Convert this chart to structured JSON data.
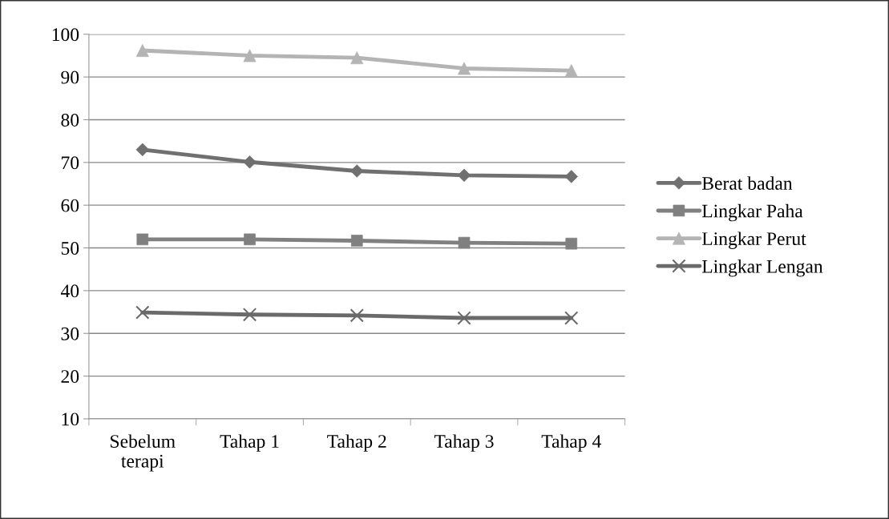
{
  "chart_data": {
    "type": "line",
    "categories": [
      "Sebelum\nterapi",
      "Tahap 1",
      "Tahap 2",
      "Tahap 3",
      "Tahap 4"
    ],
    "series": [
      {
        "name": "Berat badan",
        "color": "#707070",
        "marker": "diamond",
        "values": [
          73,
          70.1,
          68,
          67,
          66.7
        ]
      },
      {
        "name": "Lingkar Paha",
        "color": "#808080",
        "marker": "square",
        "values": [
          52,
          52,
          51.7,
          51.2,
          51
        ]
      },
      {
        "name": "Lingkar Perut",
        "color": "#b4b4b4",
        "marker": "triangle",
        "values": [
          96.2,
          95,
          94.5,
          92,
          91.5
        ]
      },
      {
        "name": "Lingkar Lengan",
        "color": "#6a6a6a",
        "marker": "cross",
        "values": [
          34.9,
          34.4,
          34.2,
          33.6,
          33.6
        ]
      }
    ],
    "ylim": [
      10,
      100
    ],
    "yticks": [
      10,
      20,
      30,
      40,
      50,
      60,
      70,
      80,
      90,
      100
    ],
    "grid": "y",
    "legend": "right"
  }
}
